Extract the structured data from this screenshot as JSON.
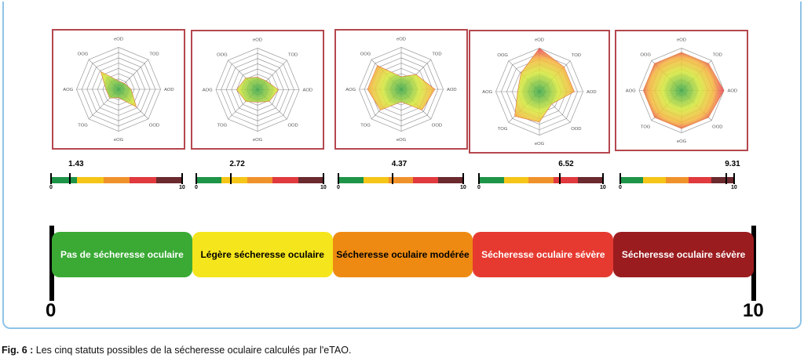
{
  "axes": [
    "eOD",
    "TOD",
    "AOD",
    "OOD",
    "eOG",
    "TOG",
    "AOG",
    "OOG"
  ],
  "panels": [
    {
      "score": "1.43",
      "values": [
        2,
        2,
        3,
        6,
        2,
        3,
        3,
        6
      ]
    },
    {
      "score": "2.72",
      "values": [
        3,
        3,
        5,
        4,
        3,
        4,
        5,
        4
      ]
    },
    {
      "score": "4.37",
      "values": [
        3,
        5,
        8,
        7,
        3,
        7,
        8,
        8
      ]
    },
    {
      "score": "6.52",
      "values": [
        10,
        8,
        8,
        4,
        7,
        8,
        5,
        6
      ]
    },
    {
      "score": "9.31",
      "values": [
        9,
        9,
        10,
        9,
        9,
        9,
        9,
        9
      ]
    }
  ],
  "scale": {
    "min": "0",
    "max": "10"
  },
  "statuses": [
    {
      "label": "Pas de sécheresse oculaire",
      "color": "#3aaa35",
      "text": "#ffffff"
    },
    {
      "label": "Légère sécheresse oculaire",
      "color": "#f5e51c",
      "text": "#000000"
    },
    {
      "label": "Sécheresse oculaire modérée",
      "color": "#ee8a12",
      "text": "#000000"
    },
    {
      "label": "Sécheresse oculaire sévère",
      "color": "#e63a30",
      "text": "#ffffff"
    },
    {
      "label": "Sécheresse oculaire sévère",
      "color": "#9b1c1f",
      "text": "#ffffff"
    }
  ],
  "scale_colors": [
    "#1e9448",
    "#f5c518",
    "#f0922b",
    "#e0393e",
    "#6b2a2e"
  ],
  "caption": {
    "prefix": "Fig. 6 :",
    "text": " Les cinq statuts possibles de la sécheresse oculaire calculés par l'eTAO."
  }
}
